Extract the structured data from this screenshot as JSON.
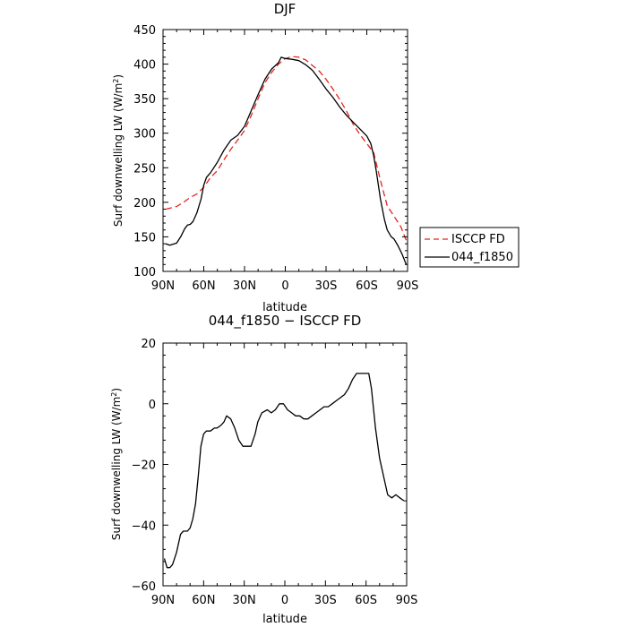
{
  "chart_data": [
    {
      "type": "line",
      "title": "DJF",
      "xlabel": "latitude",
      "ylabel": "Surf downwelling LW (W/m",
      "ylabel_sup": "2",
      "ylabel_tail": ")",
      "xlim": [
        -90,
        90
      ],
      "ylim": [
        100,
        450
      ],
      "xticks": [
        -90,
        -60,
        -30,
        0,
        30,
        60,
        90
      ],
      "xtick_labels": [
        "90N",
        "60N",
        "30N",
        "0",
        "30S",
        "60S",
        "90S"
      ],
      "yticks": [
        100,
        150,
        200,
        250,
        300,
        350,
        400,
        450
      ],
      "ytick_labels": [
        "100",
        "150",
        "200",
        "250",
        "300",
        "350",
        "400",
        "450"
      ],
      "grid": false,
      "legend_position": "right",
      "series": [
        {
          "name": "ISCCP FD",
          "color": "#e8221c",
          "dash": "dashed",
          "x": [
            -88,
            -80,
            -75,
            -70,
            -65,
            -60,
            -55,
            -50,
            -45,
            -40,
            -35,
            -30,
            -25,
            -20,
            -15,
            -10,
            -5,
            0,
            5,
            10,
            15,
            20,
            25,
            30,
            35,
            40,
            45,
            50,
            55,
            60,
            65,
            70,
            75,
            80,
            85,
            90
          ],
          "y": [
            190,
            194,
            200,
            207,
            212,
            222,
            236,
            246,
            262,
            277,
            290,
            304,
            326,
            350,
            373,
            388,
            400,
            408,
            411,
            410,
            406,
            398,
            390,
            378,
            364,
            349,
            332,
            313,
            298,
            285,
            272,
            232,
            195,
            180,
            165,
            140
          ]
        },
        {
          "name": "044_f1850",
          "color": "#000000",
          "dash": "solid",
          "x": [
            -88,
            -85,
            -80,
            -77,
            -74,
            -72,
            -70,
            -68,
            -65,
            -62,
            -60,
            -58,
            -55,
            -50,
            -45,
            -40,
            -35,
            -30,
            -25,
            -20,
            -15,
            -10,
            -5,
            -3,
            0,
            5,
            10,
            15,
            20,
            25,
            30,
            35,
            40,
            45,
            50,
            55,
            60,
            63,
            65,
            67,
            70,
            73,
            75,
            78,
            80,
            83,
            86,
            89
          ],
          "y": [
            140,
            138,
            141,
            150,
            162,
            167,
            168,
            172,
            185,
            205,
            225,
            236,
            243,
            258,
            276,
            290,
            297,
            310,
            333,
            356,
            378,
            393,
            402,
            410,
            408,
            407,
            405,
            399,
            391,
            378,
            364,
            352,
            338,
            326,
            316,
            306,
            296,
            285,
            268,
            245,
            205,
            175,
            160,
            150,
            147,
            137,
            125,
            110
          ]
        }
      ]
    },
    {
      "type": "line",
      "title": "044_f1850 − ISCCP FD",
      "xlabel": "latitude",
      "ylabel": "Surf downwelling LW (W/m",
      "ylabel_sup": "2",
      "ylabel_tail": ")",
      "xlim": [
        -90,
        90
      ],
      "ylim": [
        -60,
        20
      ],
      "xticks": [
        -90,
        -60,
        -30,
        0,
        30,
        60,
        90
      ],
      "xtick_labels": [
        "90N",
        "60N",
        "30N",
        "0",
        "30S",
        "60S",
        "90S"
      ],
      "yticks": [
        -60,
        -40,
        -20,
        0,
        20
      ],
      "ytick_labels": [
        "−60",
        "−40",
        "−20",
        "0",
        "20"
      ],
      "grid": false,
      "series": [
        {
          "name": "",
          "color": "#000000",
          "dash": "solid",
          "x": [
            -89,
            -87,
            -85,
            -83,
            -80,
            -77,
            -75,
            -72,
            -70,
            -68,
            -66,
            -64,
            -62,
            -60,
            -58,
            -55,
            -52,
            -50,
            -47,
            -45,
            -43,
            -40,
            -37,
            -34,
            -31,
            -28,
            -25,
            -22,
            -20,
            -17,
            -13,
            -10,
            -7,
            -4,
            -1,
            2,
            5,
            8,
            11,
            14,
            17,
            20,
            23,
            26,
            29,
            32,
            35,
            38,
            41,
            44,
            47,
            50,
            53,
            55,
            57,
            60,
            62,
            64,
            67,
            70,
            73,
            76,
            79,
            82,
            85,
            88
          ],
          "y": [
            -51,
            -54,
            -54,
            -53,
            -49,
            -43,
            -42,
            -42,
            -41,
            -38,
            -33,
            -24,
            -14,
            -10,
            -9,
            -9,
            -8,
            -8,
            -7,
            -6,
            -4,
            -5,
            -8,
            -12,
            -14,
            -14,
            -14,
            -10,
            -6,
            -3,
            -2,
            -3,
            -2,
            0,
            0,
            -2,
            -3,
            -4,
            -4,
            -5,
            -5,
            -4,
            -3,
            -2,
            -1,
            -1,
            0,
            1,
            2,
            3,
            5,
            8,
            10,
            10,
            10,
            10,
            10,
            5,
            -8,
            -18,
            -24,
            -30,
            -31,
            -30,
            -31,
            -32
          ]
        }
      ]
    }
  ]
}
